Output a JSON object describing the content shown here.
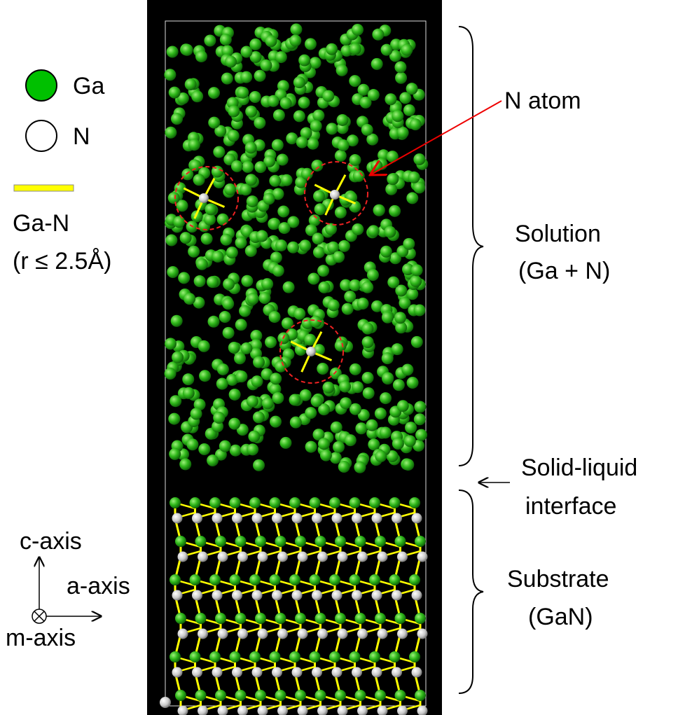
{
  "legend": {
    "items": [
      {
        "label": "Ga"
      },
      {
        "label": "N"
      }
    ],
    "bond": {
      "label": "Ga-N",
      "condition": "(r ≤ 2.5Å)"
    }
  },
  "annotations": {
    "n_atom": "N atom",
    "solution": {
      "line1": "Solution",
      "line2": "(Ga + N)"
    },
    "interface": {
      "line1": "Solid-liquid",
      "line2": "interface"
    },
    "substrate": {
      "line1": "Substrate",
      "line2": "(GaN)"
    }
  },
  "axes": {
    "c": "c-axis",
    "a": "a-axis",
    "m": "m-axis"
  }
}
